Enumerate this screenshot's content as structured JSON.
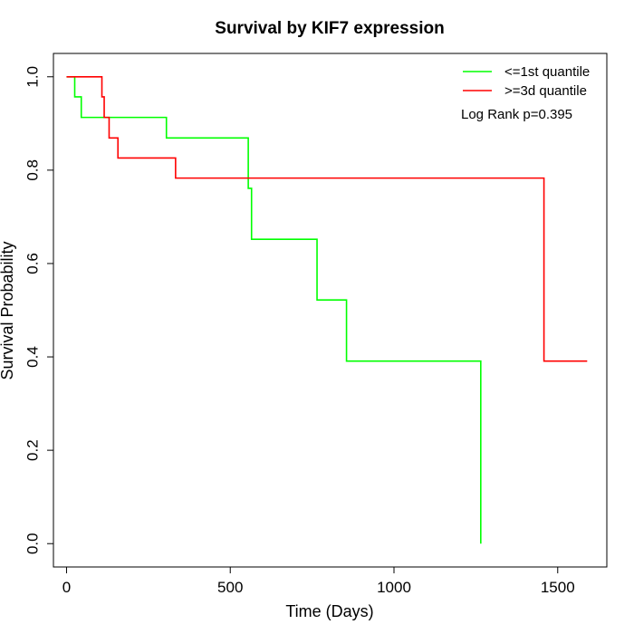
{
  "chart_data": {
    "type": "line",
    "title": "Survival by KIF7 expression",
    "xlabel": "Time (Days)",
    "ylabel": "Survival Probability",
    "xlim": [
      -40,
      1650
    ],
    "ylim": [
      -0.05,
      1.05
    ],
    "xticks": [
      {
        "value": 0,
        "label": "0"
      },
      {
        "value": 500,
        "label": "500"
      },
      {
        "value": 1000,
        "label": "1000"
      },
      {
        "value": 1500,
        "label": "1500"
      }
    ],
    "yticks": [
      {
        "value": 0.0,
        "label": "0.0"
      },
      {
        "value": 0.2,
        "label": "0.2"
      },
      {
        "value": 0.4,
        "label": "0.4"
      },
      {
        "value": 0.6,
        "label": "0.6"
      },
      {
        "value": 0.8,
        "label": "0.8"
      },
      {
        "value": 1.0,
        "label": "1.0"
      }
    ],
    "series": [
      {
        "name": "<=1st quantile",
        "color": "#00ff00",
        "x": [
          0,
          25,
          45,
          305,
          555,
          565,
          765,
          855,
          1265,
          1265
        ],
        "y": [
          1.0,
          0.957,
          0.913,
          0.869,
          0.761,
          0.652,
          0.522,
          0.391,
          0.391,
          0.0
        ]
      },
      {
        "name": ">=3d quantile",
        "color": "#ff0000",
        "x": [
          0,
          108,
          115,
          130,
          157,
          333,
          1458,
          1590
        ],
        "y": [
          1.0,
          0.957,
          0.913,
          0.869,
          0.826,
          0.783,
          0.391,
          0.391
        ]
      }
    ],
    "legend": {
      "position": "top-right",
      "entries": [
        "<=1st quantile",
        ">=3d quantile"
      ]
    },
    "annotation": "Log Rank p=0.395",
    "grid": false
  }
}
